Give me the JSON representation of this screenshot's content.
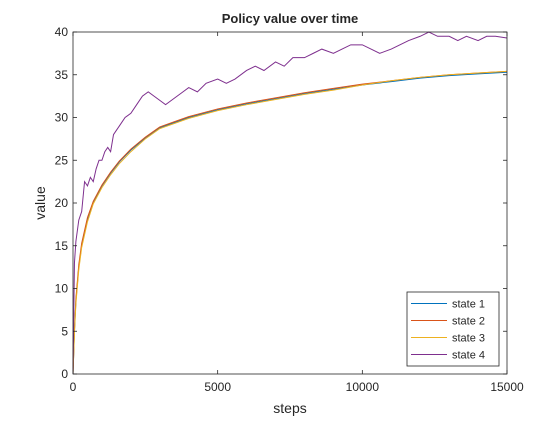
{
  "chart_data": {
    "type": "line",
    "title": "Policy value over time",
    "xlabel": "steps",
    "ylabel": "value",
    "xlim": [
      0,
      15000
    ],
    "ylim": [
      0,
      40
    ],
    "xticks": [
      0,
      5000,
      10000,
      15000
    ],
    "yticks": [
      0,
      5,
      10,
      15,
      20,
      25,
      30,
      35,
      40
    ],
    "grid": false,
    "legend_position": "bottom-right",
    "series": [
      {
        "name": "state 1",
        "color": "#0072BD",
        "x": [
          0,
          50,
          100,
          200,
          300,
          500,
          700,
          1000,
          1300,
          1600,
          2000,
          2500,
          3000,
          3500,
          4000,
          5000,
          6000,
          7000,
          8000,
          9000,
          10000,
          11000,
          12000,
          13000,
          14000,
          15000
        ],
        "y": [
          0,
          5,
          8.5,
          12.5,
          15,
          18,
          20,
          22,
          23.5,
          24.8,
          26.2,
          27.6,
          28.8,
          29.4,
          30,
          30.9,
          31.6,
          32.2,
          32.8,
          33.3,
          33.8,
          34.2,
          34.6,
          34.9,
          35.1,
          35.3
        ]
      },
      {
        "name": "state 2",
        "color": "#D95319",
        "x": [
          0,
          50,
          100,
          200,
          300,
          500,
          700,
          1000,
          1300,
          1600,
          2000,
          2500,
          3000,
          3500,
          4000,
          5000,
          6000,
          7000,
          8000,
          9000,
          10000,
          11000,
          12000,
          13000,
          14000,
          15000
        ],
        "y": [
          0,
          5.2,
          8.8,
          12.8,
          15.3,
          18.3,
          20.2,
          22.1,
          23.6,
          24.9,
          26.3,
          27.7,
          28.9,
          29.5,
          30.1,
          31,
          31.7,
          32.3,
          32.9,
          33.4,
          33.9,
          34.3,
          34.7,
          35,
          35.2,
          35.4
        ]
      },
      {
        "name": "state 3",
        "color": "#EDB120",
        "x": [
          0,
          50,
          100,
          200,
          300,
          500,
          700,
          1000,
          1300,
          1600,
          2000,
          2500,
          3000,
          3500,
          4000,
          5000,
          6000,
          7000,
          8000,
          9000,
          10000,
          11000,
          12000,
          13000,
          14000,
          15000
        ],
        "y": [
          0,
          4.8,
          8.2,
          12.2,
          14.8,
          17.8,
          19.9,
          21.8,
          23.3,
          24.6,
          26,
          27.5,
          28.7,
          29.3,
          29.9,
          30.8,
          31.5,
          32.1,
          32.7,
          33.2,
          33.8,
          34.3,
          34.7,
          35,
          35.2,
          35.4
        ]
      },
      {
        "name": "state 4",
        "color": "#7E2F8E",
        "x": [
          0,
          50,
          100,
          200,
          300,
          400,
          500,
          600,
          700,
          800,
          900,
          1000,
          1100,
          1200,
          1300,
          1400,
          1500,
          1600,
          1800,
          2000,
          2200,
          2400,
          2600,
          2800,
          3000,
          3200,
          3400,
          3600,
          3800,
          4000,
          4300,
          4600,
          5000,
          5300,
          5600,
          6000,
          6300,
          6600,
          7000,
          7300,
          7600,
          8000,
          8300,
          8600,
          9000,
          9300,
          9600,
          10000,
          10300,
          10600,
          11000,
          11300,
          11600,
          12000,
          12300,
          12600,
          13000,
          13300,
          13600,
          14000,
          14300,
          14600,
          15000
        ],
        "y": [
          0,
          13,
          15.5,
          18,
          19,
          22.5,
          22,
          23,
          22.5,
          24,
          25,
          25,
          26,
          26.5,
          26,
          28,
          28.5,
          29,
          30,
          30.5,
          31.5,
          32.5,
          33,
          32.5,
          32,
          31.5,
          32,
          32.5,
          33,
          33.5,
          33,
          34,
          34.5,
          34,
          34.5,
          35.5,
          36,
          35.5,
          36.5,
          36,
          37,
          37,
          37.5,
          38,
          37.5,
          38,
          38.5,
          38.5,
          38,
          37.5,
          38,
          38.5,
          39,
          39.5,
          40,
          39.5,
          39.5,
          39,
          39.5,
          39,
          39.5,
          39.5,
          39.3
        ]
      }
    ]
  }
}
